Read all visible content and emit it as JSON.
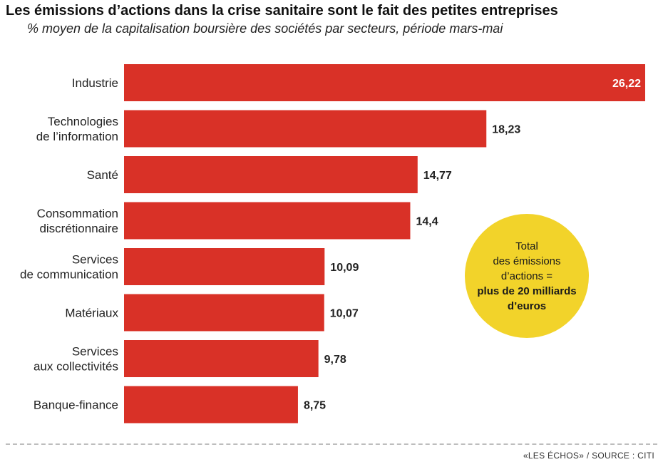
{
  "chart_data": {
    "type": "bar",
    "orientation": "horizontal",
    "title": "Les émissions d’actions dans la crise sanitaire sont le fait des petites entreprises",
    "subtitle": "% moyen de la capitalisation boursière des sociétés par secteurs, période mars-mai",
    "categories": [
      [
        "Industrie"
      ],
      [
        "Technologies",
        "de l’information"
      ],
      [
        "Santé"
      ],
      [
        "Consommation",
        "discrétionnaire"
      ],
      [
        "Services",
        "de communication"
      ],
      [
        "Matériaux"
      ],
      [
        "Services",
        "aux collectivités"
      ],
      [
        "Banque-finance"
      ]
    ],
    "values": [
      26.22,
      18.23,
      14.77,
      14.4,
      10.09,
      10.07,
      9.78,
      8.75
    ],
    "value_labels": [
      "26,22",
      "18,23",
      "14,77",
      "14,4",
      "10,09",
      "10,07",
      "9,78",
      "8,75"
    ],
    "bar_color": "#d93127",
    "annotation": {
      "lines": [
        "Total",
        "des émissions",
        "d’actions =",
        "plus de 20 milliards",
        "d’euros"
      ],
      "bold_from": 3,
      "color": "#f2d32a"
    },
    "xlim": [
      0,
      26.22
    ]
  },
  "source": "«LES ÉCHOS» / SOURCE : CITI"
}
